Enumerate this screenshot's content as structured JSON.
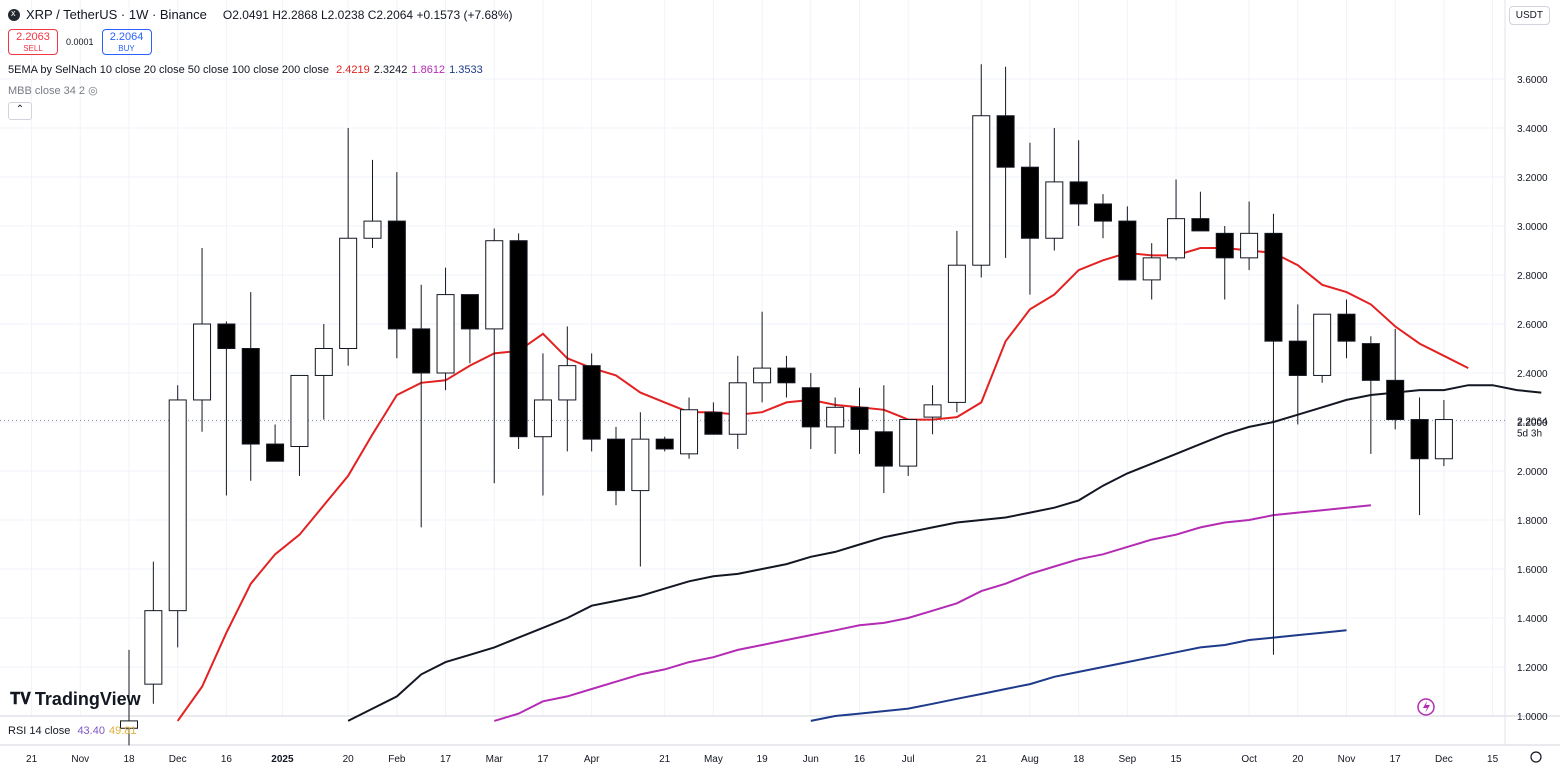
{
  "header": {
    "symbol": "XRP / TetherUS · 1W · Binance",
    "open": "O2.0491",
    "high": "H2.2868",
    "low": "L2.0238",
    "close": "C2.2064",
    "change": "+0.1573 (+7.68%)"
  },
  "trade": {
    "sell_price": "2.2063",
    "sell_label": "SELL",
    "spread": "0.0001",
    "buy_price": "2.2064",
    "buy_label": "BUY"
  },
  "indicators": {
    "ema_name": "5EMA by SelNach 10 close 20 close 50 close 100 close 200 close",
    "ema_values": [
      {
        "value": "2.4219",
        "color": "#e32121"
      },
      {
        "value": "2.3242",
        "color": "#131722"
      },
      {
        "value": "1.8612",
        "color": "#b42cb4"
      },
      {
        "value": "1.3533",
        "color": "#1e3a8a"
      }
    ],
    "mbb_name": "MBB close 34 2",
    "rsi_name": "RSI 14 close",
    "rsi_values": [
      {
        "value": "43.40",
        "color": "#7e57c2"
      },
      {
        "value": "49.81",
        "color": "#e0b13b"
      }
    ]
  },
  "currency_button": "USDT",
  "brand": "TradingView",
  "price_label": {
    "price": "2.2064",
    "countdown": "5d 3h"
  },
  "chart_data": {
    "type": "candlestick",
    "ylim": [
      1.0,
      3.8
    ],
    "yticks": [
      "1.0000",
      "1.2000",
      "1.4000",
      "1.6000",
      "1.8000",
      "2.0000",
      "2.2000",
      "2.4000",
      "2.6000",
      "2.8000",
      "3.0000",
      "3.2000",
      "3.4000",
      "3.6000"
    ],
    "xticks": [
      {
        "label": "21",
        "i": -4.0
      },
      {
        "label": "Nov",
        "i": -2.0
      },
      {
        "label": "18",
        "i": 0
      },
      {
        "label": "Dec",
        "i": 2.0
      },
      {
        "label": "16",
        "i": 4.0
      },
      {
        "label": "2025",
        "i": 6.3
      },
      {
        "label": "20",
        "i": 9.0
      },
      {
        "label": "Feb",
        "i": 11.0
      },
      {
        "label": "17",
        "i": 13.0
      },
      {
        "label": "Mar",
        "i": 15.0
      },
      {
        "label": "17",
        "i": 17.0
      },
      {
        "label": "Apr",
        "i": 19.0
      },
      {
        "label": "21",
        "i": 22.0
      },
      {
        "label": "May",
        "i": 24.0
      },
      {
        "label": "19",
        "i": 26.0
      },
      {
        "label": "Jun",
        "i": 28.0
      },
      {
        "label": "16",
        "i": 30.0
      },
      {
        "label": "Jul",
        "i": 32.0
      },
      {
        "label": "21",
        "i": 35.0
      },
      {
        "label": "Aug",
        "i": 37.0
      },
      {
        "label": "18",
        "i": 39.0
      },
      {
        "label": "Sep",
        "i": 41.0
      },
      {
        "label": "15",
        "i": 43.0
      },
      {
        "label": "Oct",
        "i": 46.0
      },
      {
        "label": "20",
        "i": 48.0
      },
      {
        "label": "Nov",
        "i": 50.0
      },
      {
        "label": "17",
        "i": 52.0
      },
      {
        "label": "Dec",
        "i": 54.0
      },
      {
        "label": "15",
        "i": 56.0
      }
    ],
    "candles": [
      {
        "o": 0.95,
        "h": 1.27,
        "l": 0.88,
        "c": 0.98
      },
      {
        "o": 1.13,
        "h": 1.63,
        "l": 1.05,
        "c": 1.43
      },
      {
        "o": 1.43,
        "h": 2.35,
        "l": 1.28,
        "c": 2.29
      },
      {
        "o": 2.29,
        "h": 2.91,
        "l": 2.16,
        "c": 2.6
      },
      {
        "o": 2.6,
        "h": 2.61,
        "l": 1.9,
        "c": 2.5
      },
      {
        "o": 2.5,
        "h": 2.73,
        "l": 1.96,
        "c": 2.11
      },
      {
        "o": 2.11,
        "h": 2.19,
        "l": 2.06,
        "c": 2.04
      },
      {
        "o": 2.1,
        "h": 2.38,
        "l": 1.98,
        "c": 2.39
      },
      {
        "o": 2.39,
        "h": 2.6,
        "l": 2.21,
        "c": 2.5
      },
      {
        "o": 2.5,
        "h": 3.4,
        "l": 2.43,
        "c": 2.95
      },
      {
        "o": 2.95,
        "h": 3.27,
        "l": 2.91,
        "c": 3.02
      },
      {
        "o": 3.02,
        "h": 3.22,
        "l": 2.46,
        "c": 2.58
      },
      {
        "o": 2.58,
        "h": 2.76,
        "l": 1.77,
        "c": 2.4
      },
      {
        "o": 2.4,
        "h": 2.83,
        "l": 2.33,
        "c": 2.72
      },
      {
        "o": 2.72,
        "h": 2.7,
        "l": 2.44,
        "c": 2.58
      },
      {
        "o": 2.58,
        "h": 2.99,
        "l": 1.95,
        "c": 2.94
      },
      {
        "o": 2.94,
        "h": 2.97,
        "l": 2.09,
        "c": 2.14
      },
      {
        "o": 2.14,
        "h": 2.48,
        "l": 1.9,
        "c": 2.29
      },
      {
        "o": 2.29,
        "h": 2.59,
        "l": 2.08,
        "c": 2.43
      },
      {
        "o": 2.43,
        "h": 2.48,
        "l": 2.08,
        "c": 2.13
      },
      {
        "o": 2.13,
        "h": 2.18,
        "l": 1.86,
        "c": 1.92
      },
      {
        "o": 1.92,
        "h": 2.24,
        "l": 1.61,
        "c": 2.13
      },
      {
        "o": 2.13,
        "h": 2.14,
        "l": 2.08,
        "c": 2.09
      },
      {
        "o": 2.07,
        "h": 2.3,
        "l": 2.05,
        "c": 2.25
      },
      {
        "o": 2.24,
        "h": 2.28,
        "l": 2.17,
        "c": 2.15
      },
      {
        "o": 2.15,
        "h": 2.47,
        "l": 2.09,
        "c": 2.36
      },
      {
        "o": 2.36,
        "h": 2.65,
        "l": 2.28,
        "c": 2.42
      },
      {
        "o": 2.42,
        "h": 2.47,
        "l": 2.3,
        "c": 2.36
      },
      {
        "o": 2.34,
        "h": 2.4,
        "l": 2.09,
        "c": 2.18
      },
      {
        "o": 2.18,
        "h": 2.3,
        "l": 2.07,
        "c": 2.26
      },
      {
        "o": 2.26,
        "h": 2.34,
        "l": 2.07,
        "c": 2.17
      },
      {
        "o": 2.16,
        "h": 2.35,
        "l": 1.91,
        "c": 2.02
      },
      {
        "o": 2.02,
        "h": 2.21,
        "l": 1.98,
        "c": 2.21
      },
      {
        "o": 2.22,
        "h": 2.35,
        "l": 2.15,
        "c": 2.27
      },
      {
        "o": 2.28,
        "h": 2.98,
        "l": 2.24,
        "c": 2.84
      },
      {
        "o": 2.84,
        "h": 3.66,
        "l": 2.79,
        "c": 3.45
      },
      {
        "o": 3.45,
        "h": 3.65,
        "l": 2.87,
        "c": 3.24
      },
      {
        "o": 3.24,
        "h": 3.34,
        "l": 2.72,
        "c": 2.95
      },
      {
        "o": 2.95,
        "h": 3.4,
        "l": 2.9,
        "c": 3.18
      },
      {
        "o": 3.18,
        "h": 3.35,
        "l": 3.0,
        "c": 3.09
      },
      {
        "o": 3.09,
        "h": 3.13,
        "l": 2.95,
        "c": 3.02
      },
      {
        "o": 3.02,
        "h": 3.08,
        "l": 2.79,
        "c": 2.78
      },
      {
        "o": 2.78,
        "h": 2.93,
        "l": 2.7,
        "c": 2.87
      },
      {
        "o": 2.87,
        "h": 3.19,
        "l": 2.86,
        "c": 3.03
      },
      {
        "o": 3.03,
        "h": 3.14,
        "l": 2.98,
        "c": 2.98
      },
      {
        "o": 2.97,
        "h": 3.0,
        "l": 2.7,
        "c": 2.87
      },
      {
        "o": 2.87,
        "h": 3.1,
        "l": 2.82,
        "c": 2.97
      },
      {
        "o": 2.97,
        "h": 3.05,
        "l": 1.25,
        "c": 2.53
      },
      {
        "o": 2.53,
        "h": 2.68,
        "l": 2.19,
        "c": 2.39
      },
      {
        "o": 2.39,
        "h": 2.64,
        "l": 2.36,
        "c": 2.64
      },
      {
        "o": 2.64,
        "h": 2.7,
        "l": 2.46,
        "c": 2.53
      },
      {
        "o": 2.52,
        "h": 2.55,
        "l": 2.07,
        "c": 2.37
      },
      {
        "o": 2.37,
        "h": 2.58,
        "l": 2.17,
        "c": 2.21
      },
      {
        "o": 2.21,
        "h": 2.3,
        "l": 1.82,
        "c": 2.05
      },
      {
        "o": 2.05,
        "h": 2.29,
        "l": 2.02,
        "c": 2.21
      }
    ],
    "series": [
      {
        "name": "EMA 10",
        "color": "#e32121",
        "values": [
          {
            "i": 2,
            "v": 0.98
          },
          {
            "i": 3,
            "v": 1.12
          },
          {
            "i": 4,
            "v": 1.34
          },
          {
            "i": 5,
            "v": 1.54
          },
          {
            "i": 6,
            "v": 1.66
          },
          {
            "i": 7,
            "v": 1.74
          },
          {
            "i": 8,
            "v": 1.86
          },
          {
            "i": 9,
            "v": 1.98
          },
          {
            "i": 10,
            "v": 2.15
          },
          {
            "i": 11,
            "v": 2.31
          },
          {
            "i": 12,
            "v": 2.36
          },
          {
            "i": 13,
            "v": 2.37
          },
          {
            "i": 14,
            "v": 2.43
          },
          {
            "i": 15,
            "v": 2.48
          },
          {
            "i": 16,
            "v": 2.49
          },
          {
            "i": 17,
            "v": 2.56
          },
          {
            "i": 18,
            "v": 2.46
          },
          {
            "i": 19,
            "v": 2.42
          },
          {
            "i": 20,
            "v": 2.39
          },
          {
            "i": 21,
            "v": 2.32
          },
          {
            "i": 22,
            "v": 2.28
          },
          {
            "i": 23,
            "v": 2.24
          },
          {
            "i": 24,
            "v": 2.24
          },
          {
            "i": 25,
            "v": 2.23
          },
          {
            "i": 26,
            "v": 2.24
          },
          {
            "i": 27,
            "v": 2.28
          },
          {
            "i": 28,
            "v": 2.29
          },
          {
            "i": 29,
            "v": 2.27
          },
          {
            "i": 30,
            "v": 2.26
          },
          {
            "i": 31,
            "v": 2.25
          },
          {
            "i": 32,
            "v": 2.21
          },
          {
            "i": 33,
            "v": 2.21
          },
          {
            "i": 34,
            "v": 2.22
          },
          {
            "i": 35,
            "v": 2.28
          },
          {
            "i": 36,
            "v": 2.53
          },
          {
            "i": 37,
            "v": 2.66
          },
          {
            "i": 38,
            "v": 2.72
          },
          {
            "i": 39,
            "v": 2.82
          },
          {
            "i": 40,
            "v": 2.86
          },
          {
            "i": 41,
            "v": 2.89
          },
          {
            "i": 42,
            "v": 2.88
          },
          {
            "i": 43,
            "v": 2.88
          },
          {
            "i": 44,
            "v": 2.91
          },
          {
            "i": 45,
            "v": 2.91
          },
          {
            "i": 46,
            "v": 2.9
          },
          {
            "i": 47,
            "v": 2.89
          },
          {
            "i": 48,
            "v": 2.84
          },
          {
            "i": 49,
            "v": 2.76
          },
          {
            "i": 50,
            "v": 2.73
          },
          {
            "i": 51,
            "v": 2.68
          },
          {
            "i": 52,
            "v": 2.59
          },
          {
            "i": 53,
            "v": 2.52
          },
          {
            "i": 54,
            "v": 2.47
          },
          {
            "i": 55,
            "v": 2.42
          }
        ]
      },
      {
        "name": "EMA 50",
        "color": "#131722",
        "values": [
          {
            "i": 9,
            "v": 0.98
          },
          {
            "i": 10,
            "v": 1.03
          },
          {
            "i": 11,
            "v": 1.08
          },
          {
            "i": 12,
            "v": 1.17
          },
          {
            "i": 13,
            "v": 1.22
          },
          {
            "i": 14,
            "v": 1.25
          },
          {
            "i": 15,
            "v": 1.28
          },
          {
            "i": 16,
            "v": 1.32
          },
          {
            "i": 17,
            "v": 1.36
          },
          {
            "i": 18,
            "v": 1.4
          },
          {
            "i": 19,
            "v": 1.45
          },
          {
            "i": 20,
            "v": 1.47
          },
          {
            "i": 21,
            "v": 1.49
          },
          {
            "i": 22,
            "v": 1.52
          },
          {
            "i": 23,
            "v": 1.55
          },
          {
            "i": 24,
            "v": 1.57
          },
          {
            "i": 25,
            "v": 1.58
          },
          {
            "i": 26,
            "v": 1.6
          },
          {
            "i": 27,
            "v": 1.62
          },
          {
            "i": 28,
            "v": 1.65
          },
          {
            "i": 29,
            "v": 1.67
          },
          {
            "i": 30,
            "v": 1.7
          },
          {
            "i": 31,
            "v": 1.73
          },
          {
            "i": 32,
            "v": 1.75
          },
          {
            "i": 33,
            "v": 1.77
          },
          {
            "i": 34,
            "v": 1.79
          },
          {
            "i": 35,
            "v": 1.8
          },
          {
            "i": 36,
            "v": 1.81
          },
          {
            "i": 37,
            "v": 1.83
          },
          {
            "i": 38,
            "v": 1.85
          },
          {
            "i": 39,
            "v": 1.88
          },
          {
            "i": 40,
            "v": 1.94
          },
          {
            "i": 41,
            "v": 1.99
          },
          {
            "i": 42,
            "v": 2.03
          },
          {
            "i": 43,
            "v": 2.07
          },
          {
            "i": 44,
            "v": 2.11
          },
          {
            "i": 45,
            "v": 2.15
          },
          {
            "i": 46,
            "v": 2.18
          },
          {
            "i": 47,
            "v": 2.2
          },
          {
            "i": 48,
            "v": 2.23
          },
          {
            "i": 49,
            "v": 2.26
          },
          {
            "i": 50,
            "v": 2.29
          },
          {
            "i": 51,
            "v": 2.31
          },
          {
            "i": 52,
            "v": 2.32
          },
          {
            "i": 53,
            "v": 2.33
          },
          {
            "i": 54,
            "v": 2.33
          },
          {
            "i": 55,
            "v": 2.35
          },
          {
            "i": 56,
            "v": 2.35
          },
          {
            "i": 57,
            "v": 2.33
          },
          {
            "i": 58,
            "v": 2.32
          }
        ]
      },
      {
        "name": "EMA 100",
        "color": "#b42cb4",
        "values": [
          {
            "i": 15,
            "v": 0.98
          },
          {
            "i": 16,
            "v": 1.01
          },
          {
            "i": 17,
            "v": 1.06
          },
          {
            "i": 18,
            "v": 1.08
          },
          {
            "i": 19,
            "v": 1.11
          },
          {
            "i": 20,
            "v": 1.14
          },
          {
            "i": 21,
            "v": 1.17
          },
          {
            "i": 22,
            "v": 1.19
          },
          {
            "i": 23,
            "v": 1.22
          },
          {
            "i": 24,
            "v": 1.24
          },
          {
            "i": 25,
            "v": 1.27
          },
          {
            "i": 26,
            "v": 1.29
          },
          {
            "i": 27,
            "v": 1.31
          },
          {
            "i": 28,
            "v": 1.33
          },
          {
            "i": 29,
            "v": 1.35
          },
          {
            "i": 30,
            "v": 1.37
          },
          {
            "i": 31,
            "v": 1.38
          },
          {
            "i": 32,
            "v": 1.4
          },
          {
            "i": 33,
            "v": 1.43
          },
          {
            "i": 34,
            "v": 1.46
          },
          {
            "i": 35,
            "v": 1.51
          },
          {
            "i": 36,
            "v": 1.54
          },
          {
            "i": 37,
            "v": 1.58
          },
          {
            "i": 38,
            "v": 1.61
          },
          {
            "i": 39,
            "v": 1.64
          },
          {
            "i": 40,
            "v": 1.66
          },
          {
            "i": 41,
            "v": 1.69
          },
          {
            "i": 42,
            "v": 1.72
          },
          {
            "i": 43,
            "v": 1.74
          },
          {
            "i": 44,
            "v": 1.77
          },
          {
            "i": 45,
            "v": 1.79
          },
          {
            "i": 46,
            "v": 1.8
          },
          {
            "i": 47,
            "v": 1.82
          },
          {
            "i": 48,
            "v": 1.83
          },
          {
            "i": 49,
            "v": 1.84
          },
          {
            "i": 50,
            "v": 1.85
          },
          {
            "i": 51,
            "v": 1.86
          }
        ]
      },
      {
        "name": "EMA 200",
        "color": "#1e3a8a",
        "values": [
          {
            "i": 28,
            "v": 0.98
          },
          {
            "i": 29,
            "v": 1.0
          },
          {
            "i": 30,
            "v": 1.01
          },
          {
            "i": 31,
            "v": 1.02
          },
          {
            "i": 32,
            "v": 1.03
          },
          {
            "i": 33,
            "v": 1.05
          },
          {
            "i": 34,
            "v": 1.07
          },
          {
            "i": 35,
            "v": 1.09
          },
          {
            "i": 36,
            "v": 1.11
          },
          {
            "i": 37,
            "v": 1.13
          },
          {
            "i": 38,
            "v": 1.16
          },
          {
            "i": 39,
            "v": 1.18
          },
          {
            "i": 40,
            "v": 1.2
          },
          {
            "i": 41,
            "v": 1.22
          },
          {
            "i": 42,
            "v": 1.24
          },
          {
            "i": 43,
            "v": 1.26
          },
          {
            "i": 44,
            "v": 1.28
          },
          {
            "i": 45,
            "v": 1.29
          },
          {
            "i": 46,
            "v": 1.31
          },
          {
            "i": 47,
            "v": 1.32
          },
          {
            "i": 48,
            "v": 1.33
          },
          {
            "i": 49,
            "v": 1.34
          },
          {
            "i": 50,
            "v": 1.35
          }
        ]
      }
    ]
  }
}
